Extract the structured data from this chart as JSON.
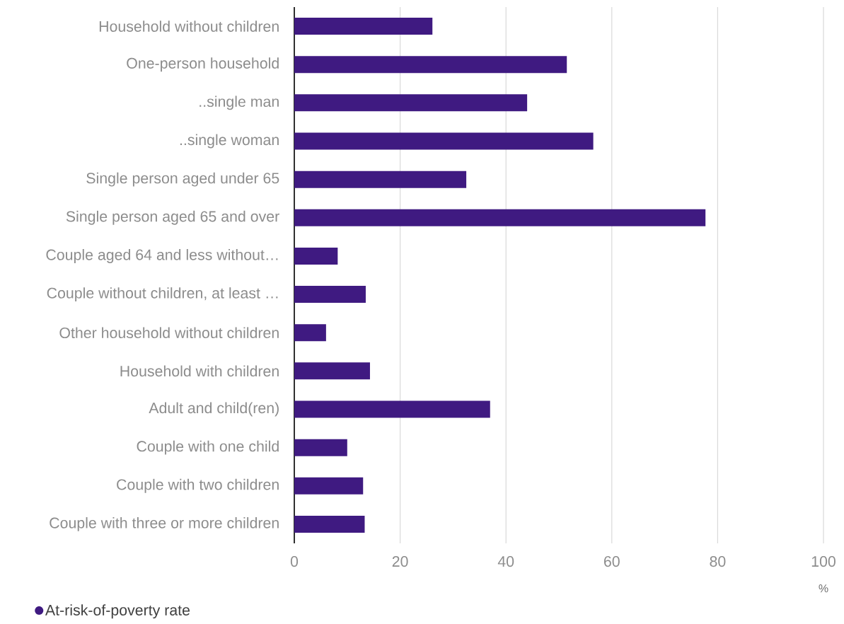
{
  "chart_data": {
    "type": "bar",
    "orientation": "horizontal",
    "categories": [
      "Household without children",
      "One-person household",
      "..single man",
      "..single woman",
      "Single person aged under 65",
      "Single person aged 65 and over",
      "Couple aged 64 and less without…",
      "Couple without children, at least …",
      "Other household without children",
      "Household with children",
      "Adult and child(ren)",
      "Couple with one child",
      "Couple with two children",
      "Couple with three or more children"
    ],
    "series": [
      {
        "name": "At-risk-of-poverty rate",
        "color": "#3f1a81",
        "values": [
          26.1,
          51.5,
          44.0,
          56.5,
          32.5,
          77.7,
          8.2,
          13.5,
          6.0,
          14.3,
          37.0,
          10.0,
          13.0,
          13.3
        ]
      }
    ],
    "xlabel": "%",
    "xlim": [
      0,
      100
    ],
    "xticks": [
      0,
      20,
      40,
      60,
      80,
      100
    ],
    "grid": "x",
    "legend": "bottom left",
    "marker": "circle"
  }
}
